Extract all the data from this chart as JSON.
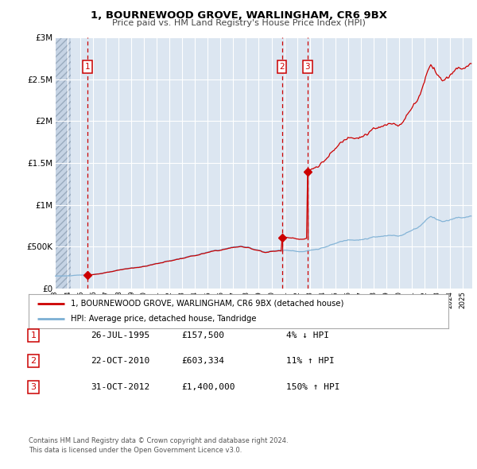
{
  "title": "1, BOURNEWOOD GROVE, WARLINGHAM, CR6 9BX",
  "subtitle": "Price paid vs. HM Land Registry's House Price Index (HPI)",
  "background_color": "#ffffff",
  "plot_bg_color": "#dce6f1",
  "grid_color": "#ffffff",
  "xlim": [
    1993.0,
    2025.75
  ],
  "ylim": [
    0,
    3000000
  ],
  "yticks": [
    0,
    500000,
    1000000,
    1500000,
    2000000,
    2500000,
    3000000
  ],
  "ytick_labels": [
    "£0",
    "£500K",
    "£1M",
    "£1.5M",
    "£2M",
    "£2.5M",
    "£3M"
  ],
  "xticks": [
    1993,
    1994,
    1995,
    1996,
    1997,
    1998,
    1999,
    2000,
    2001,
    2002,
    2003,
    2004,
    2005,
    2006,
    2007,
    2008,
    2009,
    2010,
    2011,
    2012,
    2013,
    2014,
    2015,
    2016,
    2017,
    2018,
    2019,
    2020,
    2021,
    2022,
    2023,
    2024,
    2025
  ],
  "sale_dates": [
    1995.57,
    2010.81,
    2012.83
  ],
  "sale_prices": [
    157500,
    603334,
    1400000
  ],
  "sale_labels": [
    "1",
    "2",
    "3"
  ],
  "dashed_line_color": "#cc0000",
  "sale_marker_color": "#cc0000",
  "hpi_line_color": "#7bafd4",
  "price_line_color": "#cc0000",
  "legend_entries": [
    "1, BOURNEWOOD GROVE, WARLINGHAM, CR6 9BX (detached house)",
    "HPI: Average price, detached house, Tandridge"
  ],
  "table_rows": [
    [
      "1",
      "26-JUL-1995",
      "£157,500",
      "4% ↓ HPI"
    ],
    [
      "2",
      "22-OCT-2010",
      "£603,334",
      "11% ↑ HPI"
    ],
    [
      "3",
      "31-OCT-2012",
      "£1,400,000",
      "150% ↑ HPI"
    ]
  ],
  "footer": "Contains HM Land Registry data © Crown copyright and database right 2024.\nThis data is licensed under the Open Government Licence v3.0."
}
